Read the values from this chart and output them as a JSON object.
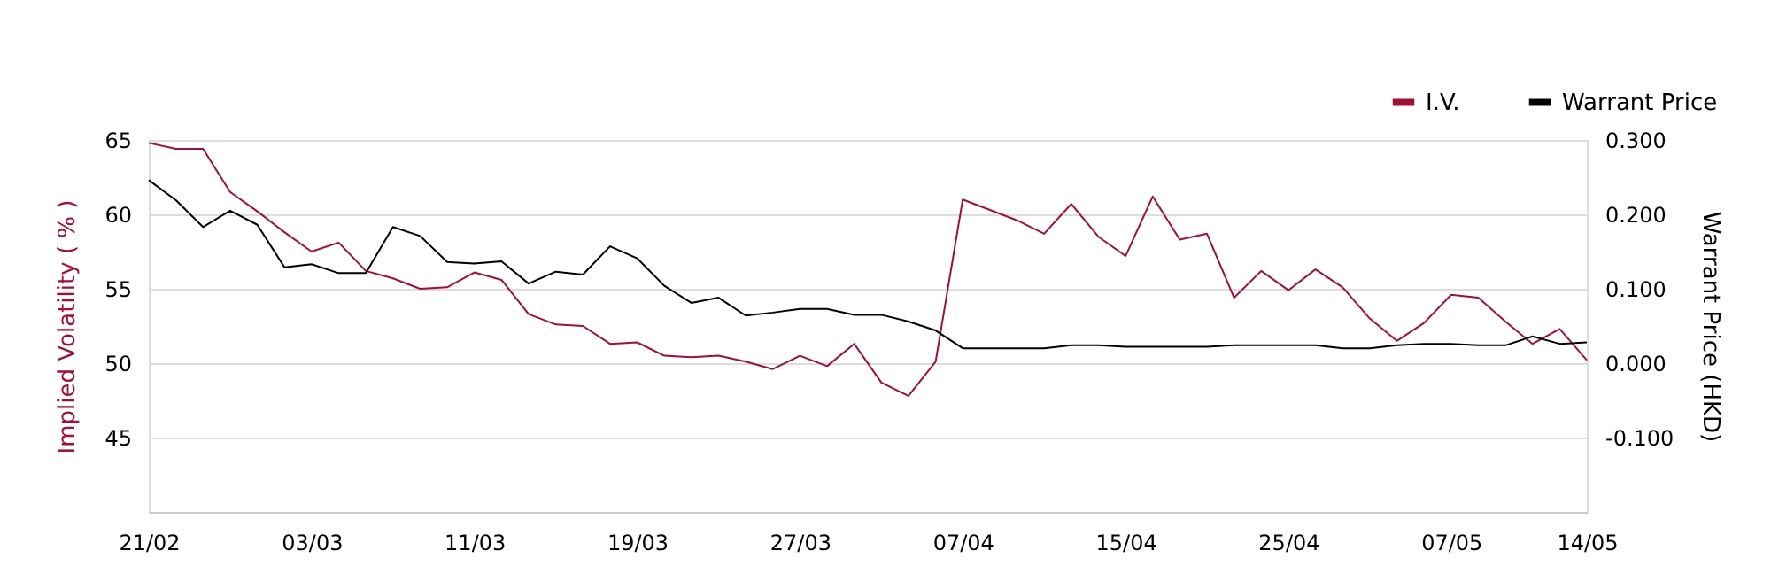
{
  "chart_data": {
    "type": "line",
    "categories": [
      "21/02",
      null,
      null,
      null,
      null,
      null,
      "03/03",
      null,
      null,
      null,
      null,
      null,
      "11/03",
      null,
      null,
      null,
      null,
      null,
      "19/03",
      null,
      null,
      null,
      null,
      null,
      "27/03",
      null,
      null,
      null,
      null,
      null,
      "07/04",
      null,
      null,
      null,
      null,
      null,
      "15/04",
      null,
      null,
      null,
      null,
      null,
      "25/04",
      null,
      null,
      null,
      null,
      null,
      "07/05",
      null,
      null,
      null,
      null,
      "14/05"
    ],
    "series": [
      {
        "name": "I.V.",
        "color": "#a50f34",
        "values": [
          64.8,
          64.4,
          64.4,
          61.5,
          60.2,
          58.8,
          57.5,
          58.1,
          56.2,
          55.7,
          55.0,
          55.1,
          56.1,
          55.6,
          53.3,
          52.6,
          52.5,
          51.3,
          51.4,
          50.5,
          50.4,
          50.5,
          50.1,
          49.6,
          50.5,
          49.8,
          51.3,
          48.7,
          47.8,
          50.1,
          61.0,
          60.3,
          59.6,
          58.7,
          60.7,
          58.5,
          57.2,
          61.2,
          58.3,
          58.7,
          54.4,
          56.2,
          54.9,
          56.3,
          55.1,
          53.0,
          51.5,
          52.7,
          54.6,
          54.4,
          52.8,
          51.3,
          52.3,
          50.2
        ]
      },
      {
        "name": "Warrant Price",
        "color": "#000000",
        "axis": "y2",
        "values": [
          0.246,
          0.219,
          0.183,
          0.205,
          0.186,
          0.129,
          0.133,
          0.121,
          0.121,
          0.183,
          0.171,
          0.136,
          0.134,
          0.137,
          0.107,
          0.123,
          0.119,
          0.157,
          0.141,
          0.104,
          0.081,
          0.088,
          0.064,
          0.068,
          0.073,
          0.073,
          0.065,
          0.065,
          0.056,
          0.044,
          0.02,
          0.02,
          0.02,
          0.02,
          0.024,
          0.024,
          0.022,
          0.022,
          0.022,
          0.022,
          0.024,
          0.024,
          0.024,
          0.024,
          0.02,
          0.02,
          0.024,
          0.026,
          0.026,
          0.024,
          0.024,
          0.036,
          0.026,
          0.028
        ]
      }
    ],
    "ylabel": "Implied Volatility ( % )",
    "y2label": "Warrant Price (HKD)",
    "ylim": [
      40,
      65
    ],
    "yticks": [
      45,
      50,
      55,
      60,
      65
    ],
    "y2lim": [
      -0.2,
      0.3
    ],
    "y2ticks": [
      {
        "value": -0.1,
        "label": "-0.100"
      },
      {
        "value": 0,
        "label": "0.000"
      },
      {
        "value": 0.1,
        "label": "0.100"
      },
      {
        "value": 0.2,
        "label": "0.200"
      },
      {
        "value": 0.3,
        "label": "0.300"
      }
    ],
    "grid": "y",
    "legend": "top right",
    "marker": "none",
    "line_style": "solid"
  }
}
